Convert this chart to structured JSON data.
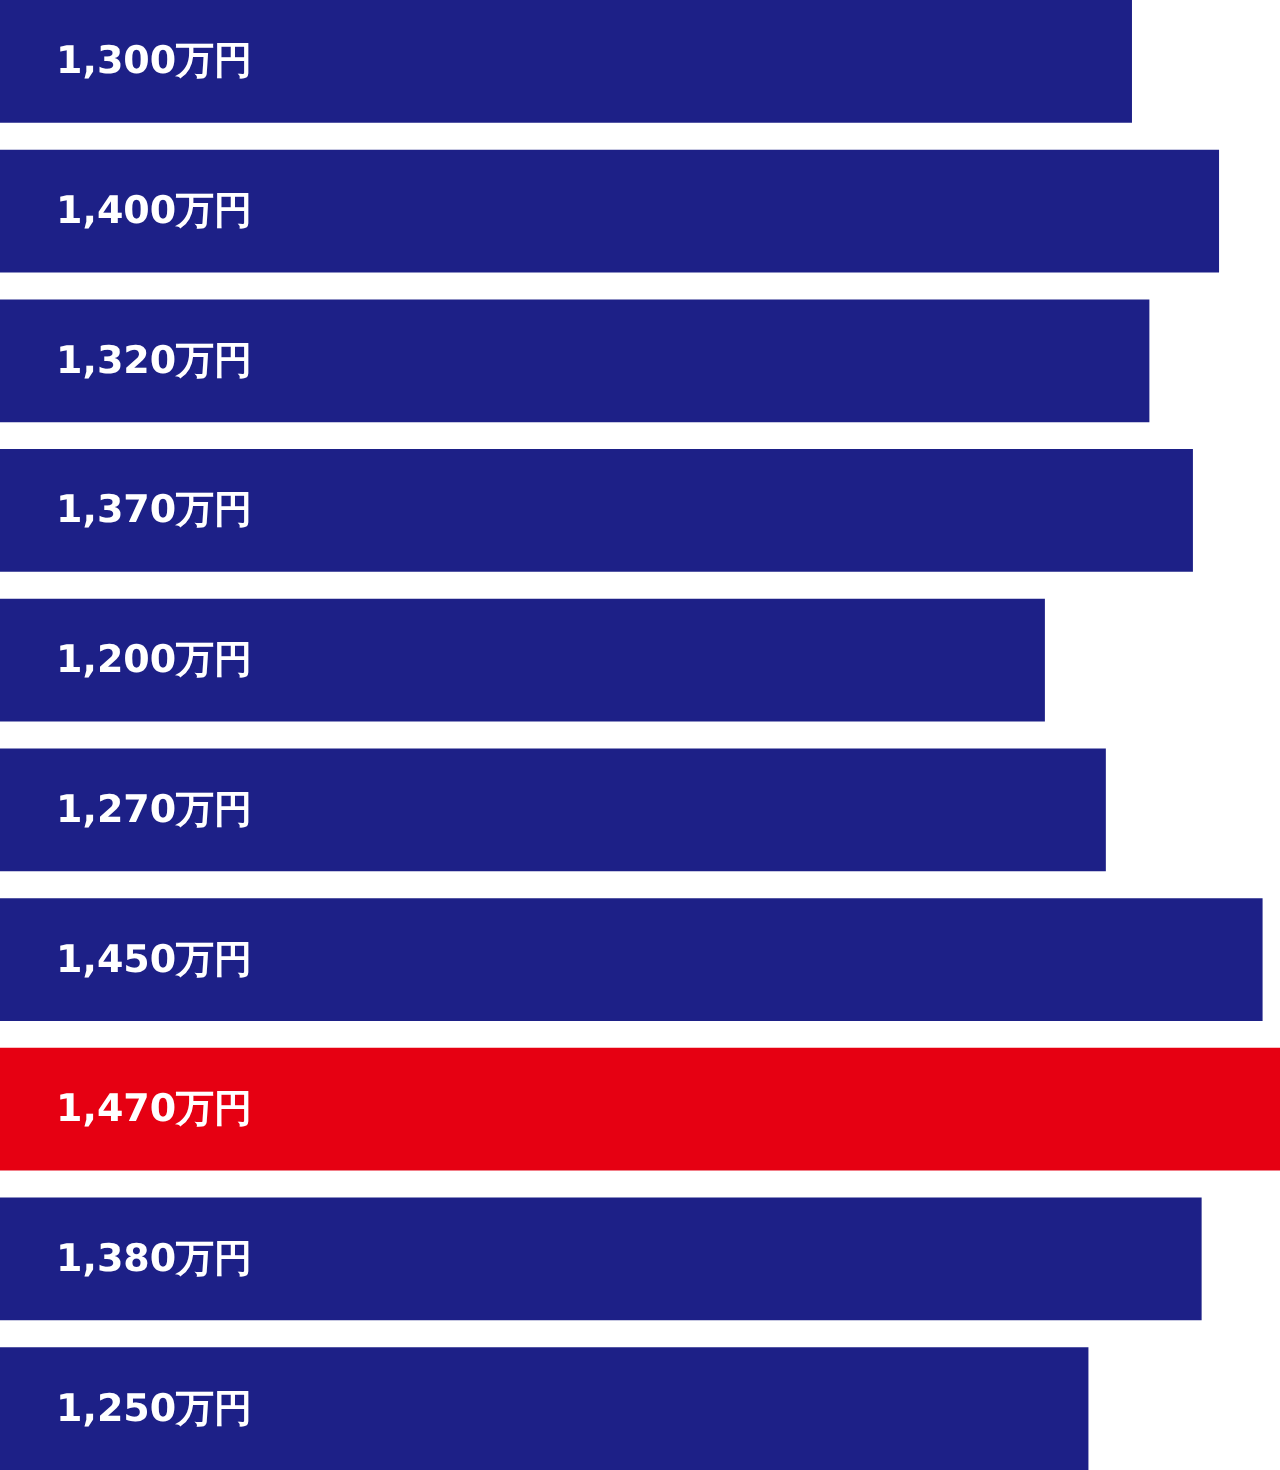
{
  "chart_data": {
    "type": "bar",
    "orientation": "horizontal",
    "categories": [
      null,
      null,
      null,
      null,
      null,
      null,
      null,
      null,
      null,
      null
    ],
    "values": [
      1300,
      1400,
      1320,
      1370,
      1200,
      1270,
      1450,
      1470,
      1380,
      1250
    ],
    "value_labels": [
      "1,300万円",
      "1,400万円",
      "1,320万円",
      "1,370万円",
      "1,200万円",
      "1,270万円",
      "1,450万円",
      "1,470万円",
      "1,380万円",
      "1,250万円"
    ],
    "colors": [
      "#1d2087",
      "#1d2087",
      "#1d2087",
      "#1d2087",
      "#1d2087",
      "#1d2087",
      "#1d2087",
      "#e60012",
      "#1d2087",
      "#1d2087"
    ]
  }
}
